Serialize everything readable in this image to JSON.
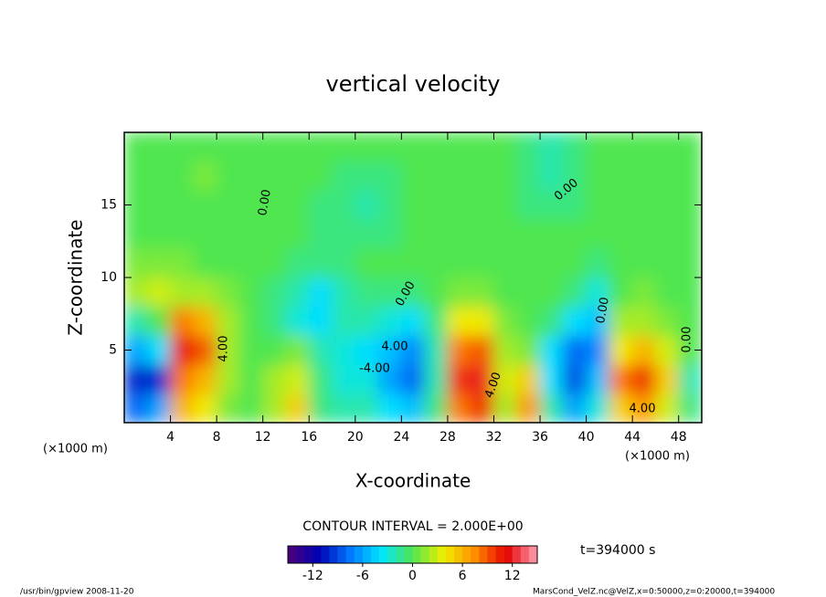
{
  "chart_data": {
    "type": "heatmap",
    "title": "vertical velocity",
    "x_label": "X-coordinate",
    "y_label": "Z-coordinate",
    "x_unit": "(×1000 m)",
    "y_unit": "(×1000 m)",
    "x": [
      1,
      3,
      5,
      7,
      9,
      11,
      13,
      15,
      17,
      19,
      21,
      23,
      25,
      27,
      29,
      31,
      33,
      35,
      37,
      39,
      41,
      43,
      45,
      47,
      49
    ],
    "y": [
      1,
      3,
      5,
      7,
      9,
      11,
      13,
      15,
      17,
      19
    ],
    "z": [
      [
        -8,
        -6,
        6,
        4,
        1,
        0,
        2,
        5,
        -1,
        -2,
        -2,
        -4,
        -5,
        -1,
        8,
        10,
        2,
        7,
        -2,
        -6,
        -3,
        5,
        7,
        3,
        -1
      ],
      [
        -10,
        -10,
        8,
        6,
        2,
        0,
        2,
        3,
        -1,
        -3,
        -3,
        -6,
        -8,
        -2,
        10,
        12,
        3,
        5,
        -4,
        -9,
        -5,
        8,
        10,
        5,
        -2
      ],
      [
        -6,
        -4,
        11,
        9,
        2,
        0,
        0,
        1,
        -2,
        -3,
        -4,
        -5,
        -7,
        -2,
        8,
        9,
        2,
        1,
        -4,
        -8,
        -7,
        4,
        6,
        3,
        0
      ],
      [
        -2,
        0,
        8,
        6,
        2,
        0,
        -1,
        -3,
        -4,
        -2,
        -2,
        -3,
        -4,
        -1,
        4,
        4,
        1,
        0,
        -1,
        -4,
        -5,
        2,
        2,
        1,
        0
      ],
      [
        2,
        3,
        2,
        2,
        1,
        0,
        -1,
        -2,
        -4,
        -2,
        -1,
        -1,
        -1,
        0,
        1,
        1,
        0,
        0,
        0,
        -1,
        -3,
        0,
        1,
        0,
        0
      ],
      [
        1,
        1,
        1,
        0,
        0,
        0,
        0,
        -1,
        -1,
        -1,
        0,
        0,
        0,
        0,
        0,
        0,
        0,
        0,
        0,
        0,
        -1,
        0,
        0,
        0,
        0
      ],
      [
        0,
        0,
        0,
        0,
        0,
        0,
        0,
        0,
        -1,
        -1,
        -1,
        -1,
        0,
        0,
        0,
        0,
        0,
        0,
        0,
        0,
        0,
        0,
        0,
        0,
        0
      ],
      [
        0,
        0,
        0,
        0,
        0,
        0,
        0,
        0,
        -1,
        -1,
        -2,
        -1,
        0,
        0,
        0,
        0,
        0,
        -1,
        -1,
        -1,
        0,
        0,
        0,
        0,
        0
      ],
      [
        0,
        0,
        0,
        1,
        0,
        0,
        0,
        0,
        0,
        -1,
        -1,
        -1,
        0,
        0,
        0,
        0,
        0,
        -1,
        -2,
        -1,
        0,
        0,
        0,
        0,
        0
      ],
      [
        0,
        0,
        0,
        0,
        0,
        0,
        0,
        0,
        0,
        0,
        0,
        0,
        0,
        0,
        0,
        0,
        0,
        -1,
        -2,
        -1,
        0,
        0,
        0,
        0,
        0
      ]
    ],
    "xlim": [
      0,
      50
    ],
    "ylim": [
      0,
      20
    ],
    "xticks": [
      4,
      8,
      12,
      16,
      20,
      24,
      28,
      32,
      36,
      40,
      44,
      48
    ],
    "yticks": [
      5,
      10,
      15
    ],
    "clim": [
      -15,
      15
    ],
    "colorbar_ticks": [
      -12,
      -6,
      0,
      6,
      12
    ],
    "colormap": [
      "#50007a",
      "#0000b4",
      "#0078ff",
      "#00e6ff",
      "#50e650",
      "#f0f000",
      "#ff8c00",
      "#e60000",
      "#ffa0b4"
    ],
    "contour_labels": [
      "0.00",
      "0.00",
      "0.00",
      "0.00",
      "4.00",
      "4.00",
      "-4.00",
      "4.00",
      "4.00",
      "0.00"
    ],
    "contour_interval": "CONTOUR INTERVAL = 2.000E+00",
    "time_label": "t=394000 s",
    "footer_left": "/usr/bin/gpview  2008-11-20",
    "footer_right": "MarsCond_VelZ.nc@VelZ,x=0:50000,z=0:20000,t=394000"
  }
}
